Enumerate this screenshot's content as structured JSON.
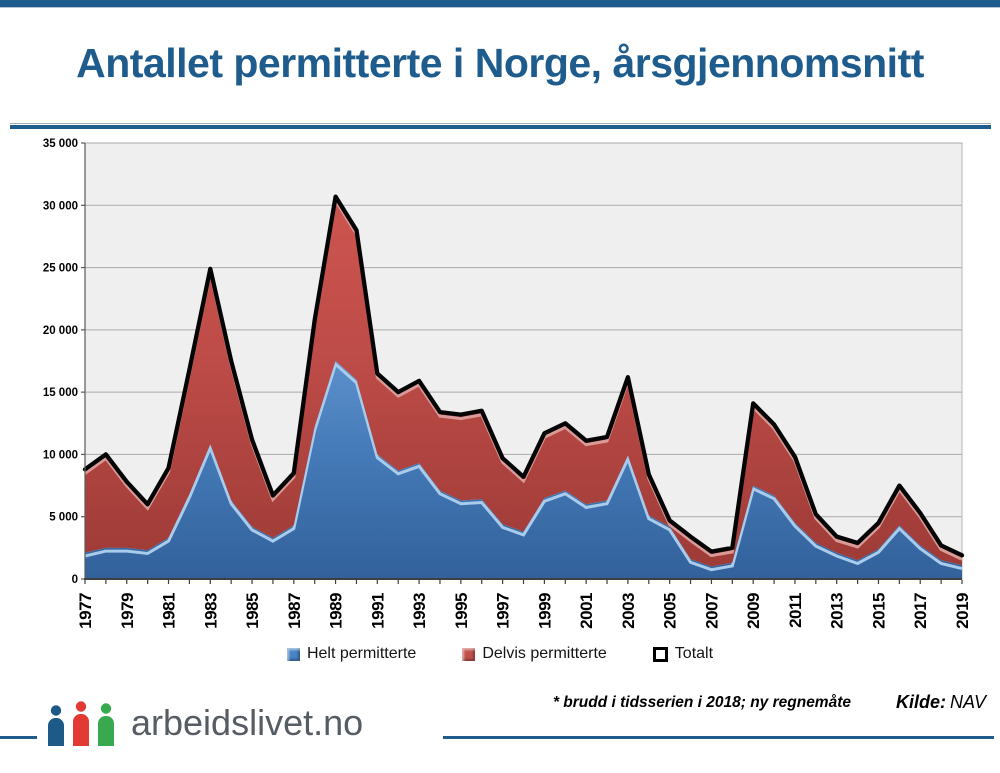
{
  "page": {
    "title": "Antallet permitterte i Norge, årsgjennomsnitt",
    "footnote": "* brudd i tidsserien i 2018; ny regnemåte",
    "source_label": "Kilde:",
    "source_value": "NAV",
    "logo_text": "arbeidslivet.no",
    "accent_color": "#1E5C8D",
    "logo_colors": {
      "person1": "#1D5A88",
      "person2": "#E23B33",
      "person3": "#38A94E",
      "text": "#565C63"
    }
  },
  "chart_data": {
    "type": "area",
    "stacked": true,
    "grid": true,
    "plot_bg": "#EFEFEF",
    "gridline_color": "#ABABAB",
    "x": [
      1977,
      1978,
      1979,
      1980,
      1981,
      1982,
      1983,
      1984,
      1985,
      1986,
      1987,
      1988,
      1989,
      1990,
      1991,
      1992,
      1993,
      1994,
      1995,
      1996,
      1997,
      1998,
      1999,
      2000,
      2001,
      2002,
      2003,
      2004,
      2005,
      2006,
      2007,
      2008,
      2009,
      2010,
      2011,
      2012,
      2013,
      2014,
      2015,
      2016,
      2017,
      2018,
      2019
    ],
    "x_axis": {
      "tick_labels": [
        "1977",
        "1979",
        "1981",
        "1983",
        "1985",
        "1987",
        "1989",
        "1991",
        "1993",
        "1995",
        "1997",
        "1999",
        "2001",
        "2003",
        "2005",
        "2007",
        "2009",
        "2011",
        "2013",
        "2015",
        "2017",
        "2019"
      ]
    },
    "y_axis": {
      "min": 0,
      "max": 35000,
      "step": 5000,
      "tick_labels": [
        "0",
        "5 000",
        "10 000",
        "15 000",
        "20 000",
        "25 000",
        "30 000",
        "35 000"
      ]
    },
    "series": [
      {
        "name": "Helt permitterte",
        "type": "area",
        "color": "#4682C4",
        "values": [
          2100,
          2500,
          2500,
          2300,
          3300,
          6800,
          10800,
          6300,
          4200,
          3300,
          4300,
          12200,
          17500,
          16000,
          10000,
          8700,
          9300,
          7100,
          6300,
          6400,
          4400,
          3800,
          6500,
          7100,
          6000,
          6300,
          9900,
          5100,
          4200,
          1600,
          1000,
          1300,
          7500,
          6700,
          4500,
          2900,
          2100,
          1500,
          2400,
          4300,
          2700,
          1500,
          1100
        ]
      },
      {
        "name": "Delvis permitterte",
        "type": "area",
        "color": "#C1504C",
        "values": [
          6700,
          7500,
          5300,
          3700,
          5600,
          10000,
          14100,
          11200,
          7000,
          3400,
          4200,
          8600,
          13200,
          12000,
          6500,
          6300,
          6600,
          6300,
          6900,
          7100,
          5300,
          4400,
          5200,
          5400,
          5100,
          5100,
          6300,
          3300,
          500,
          1800,
          1200,
          1200,
          6600,
          5700,
          5300,
          2300,
          1300,
          1400,
          2100,
          3200,
          2600,
          1200,
          800
        ]
      },
      {
        "name": "Totalt",
        "type": "line",
        "color": "#000000",
        "values": [
          8800,
          10000,
          7800,
          6000,
          8900,
          16800,
          24900,
          17500,
          11200,
          6700,
          8500,
          20800,
          30700,
          28000,
          16500,
          15000,
          15900,
          13400,
          13200,
          13500,
          9700,
          8200,
          11700,
          12500,
          11100,
          11400,
          16200,
          8400,
          4700,
          3400,
          2200,
          2500,
          14100,
          12400,
          9800,
          5200,
          3400,
          2900,
          4500,
          7500,
          5300,
          2700,
          1900
        ]
      }
    ],
    "legend_position": "bottom"
  }
}
